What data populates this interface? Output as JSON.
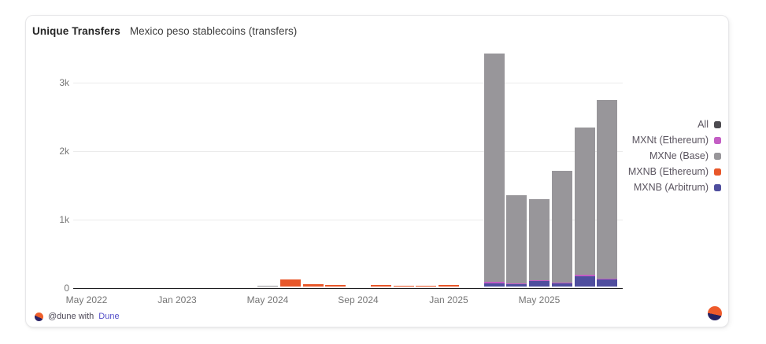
{
  "card": {
    "title": "Unique Transfers",
    "subtitle": "Mexico peso stablecoins (transfers)"
  },
  "footer": {
    "attribution": "@dune with",
    "link_label": "Dune",
    "logo": "dune-logo"
  },
  "colors": {
    "all": "#4d4b50",
    "mxnt_ethereum": "#c35ec4",
    "mxne_base": "#98969a",
    "mxnb_ethereum": "#e8572a",
    "mxnb_arbitrum": "#4f4e9e",
    "axis_line": "#1d1d1f",
    "gridline": "#ebebeb",
    "link": "#534ec9"
  },
  "legend": [
    {
      "label": "All",
      "color_key": "all"
    },
    {
      "label": "MXNt (Ethereum)",
      "color_key": "mxnt_ethereum"
    },
    {
      "label": "MXNe (Base)",
      "color_key": "mxne_base"
    },
    {
      "label": "MXNB (Ethereum)",
      "color_key": "mxnb_ethereum"
    },
    {
      "label": "MXNB (Arbitrum)",
      "color_key": "mxnb_arbitrum"
    }
  ],
  "chart_data": {
    "type": "bar",
    "stacked": true,
    "title": "Unique Transfers",
    "subtitle": "Mexico peso stablecoins (transfers)",
    "xlabel": "",
    "ylabel": "",
    "ylim": [
      0,
      3500
    ],
    "grid": true,
    "legend_position": "right",
    "yticks": [
      {
        "label": "0",
        "value": 0
      },
      {
        "label": "1k",
        "value": 1000
      },
      {
        "label": "2k",
        "value": 2000
      },
      {
        "label": "3k",
        "value": 3000
      }
    ],
    "slot_count": 24,
    "xticks": [
      {
        "label": "May 2022",
        "slot": 0
      },
      {
        "label": "Jan 2023",
        "slot": 4
      },
      {
        "label": "May 2024",
        "slot": 8
      },
      {
        "label": "Sep 2024",
        "slot": 12
      },
      {
        "label": "Jan 2025",
        "slot": 16
      },
      {
        "label": "May 2025",
        "slot": 20
      }
    ],
    "series_names": {
      "mxnb_arbitrum": "MXNB (Arbitrum)",
      "mxnt_ethereum": "MXNt (Ethereum)",
      "mxnb_ethereum": "MXNB (Ethereum)",
      "mxne_base": "MXNe (Base)"
    },
    "stack_order_bottom_to_top": [
      "mxnb_arbitrum",
      "mxnt_ethereum",
      "mxnb_ethereum",
      "mxne_base"
    ],
    "bars": [
      {
        "slot": 8,
        "label": "May 2024",
        "mxne_base": 10,
        "total": 10
      },
      {
        "slot": 9,
        "label": "Jun 2024",
        "mxnb_ethereum": 100,
        "total": 100
      },
      {
        "slot": 10,
        "label": "Jul 2024",
        "mxnb_ethereum": 40,
        "total": 40
      },
      {
        "slot": 11,
        "label": "Aug 2024",
        "mxnb_ethereum": 25,
        "total": 25
      },
      {
        "slot": 13,
        "label": "Oct 2024",
        "mxnb_ethereum": 25,
        "total": 25
      },
      {
        "slot": 14,
        "label": "Nov 2024",
        "mxnb_ethereum": 15,
        "total": 15
      },
      {
        "slot": 15,
        "label": "Dec 2024",
        "mxnb_ethereum": 15,
        "total": 15
      },
      {
        "slot": 16,
        "label": "Jan 2025",
        "mxnb_ethereum": 20,
        "total": 20
      },
      {
        "slot": 18,
        "label": "Mar 2025",
        "mxnb_arbitrum": 50,
        "mxnt_ethereum": 15,
        "mxne_base": 3335,
        "total": 3400
      },
      {
        "slot": 19,
        "label": "Apr 2025",
        "mxnb_arbitrum": 40,
        "mxnt_ethereum": 10,
        "mxne_base": 1280,
        "total": 1330
      },
      {
        "slot": 20,
        "label": "May 2025",
        "mxnb_arbitrum": 75,
        "mxnt_ethereum": 10,
        "mxne_base": 1185,
        "total": 1270
      },
      {
        "slot": 21,
        "label": "Jun 2025",
        "mxnb_arbitrum": 50,
        "mxnt_ethereum": 10,
        "mxne_base": 1630,
        "total": 1690
      },
      {
        "slot": 22,
        "label": "Jul 2025",
        "mxnb_arbitrum": 150,
        "mxnt_ethereum": 20,
        "mxne_base": 2150,
        "total": 2320
      },
      {
        "slot": 23,
        "label": "Aug 2025",
        "mxnb_arbitrum": 105,
        "mxnt_ethereum": 10,
        "mxne_base": 2605,
        "total": 2720
      }
    ]
  }
}
